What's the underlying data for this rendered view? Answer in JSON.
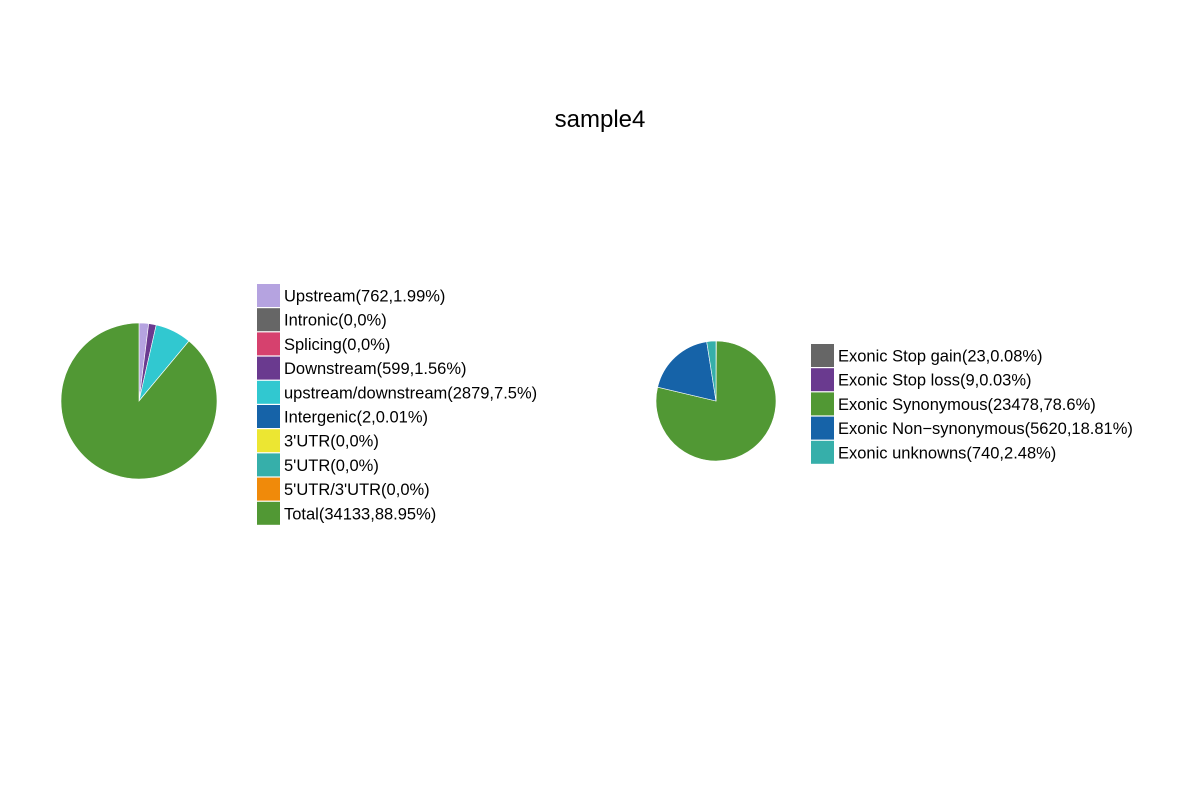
{
  "title": "sample4",
  "chart_data": [
    {
      "type": "pie",
      "start_angle_deg": 90,
      "direction": "clockwise",
      "legend_position": "right",
      "categories": [
        "Upstream(762,1.99%)",
        "Intronic(0,0%)",
        "Splicing(0,0%)",
        "Downstream(599,1.56%)",
        "upstream/downstream(2879,7.5%)",
        "Intergenic(2,0.01%)",
        "3'UTR(0,0%)",
        "5'UTR(0,0%)",
        "5'UTR/3'UTR(0,0%)",
        "Total(34133,88.95%)"
      ],
      "values": [
        762,
        0,
        0,
        599,
        2879,
        2,
        0,
        0,
        0,
        34133
      ],
      "percentages": [
        1.99,
        0,
        0,
        1.56,
        7.5,
        0.01,
        0,
        0,
        0,
        88.95
      ],
      "colors": [
        "#b5a3e0",
        "#666666",
        "#d6416e",
        "#6a3a8f",
        "#31c8d0",
        "#1663a8",
        "#ece632",
        "#36afaa",
        "#f08a0a",
        "#519834"
      ]
    },
    {
      "type": "pie",
      "start_angle_deg": 90,
      "direction": "clockwise",
      "legend_position": "right",
      "categories": [
        "Exonic Stop gain(23,0.08%)",
        "Exonic Stop loss(9,0.03%)",
        "Exonic Synonymous(23478,78.6%)",
        "Exonic Non−synonymous(5620,18.81%)",
        "Exonic unknowns(740,2.48%)"
      ],
      "values": [
        23,
        9,
        23478,
        5620,
        740
      ],
      "percentages": [
        0.08,
        0.03,
        78.6,
        18.81,
        2.48
      ],
      "colors": [
        "#666666",
        "#6a3a8f",
        "#519834",
        "#1663a8",
        "#36afaa"
      ]
    }
  ]
}
